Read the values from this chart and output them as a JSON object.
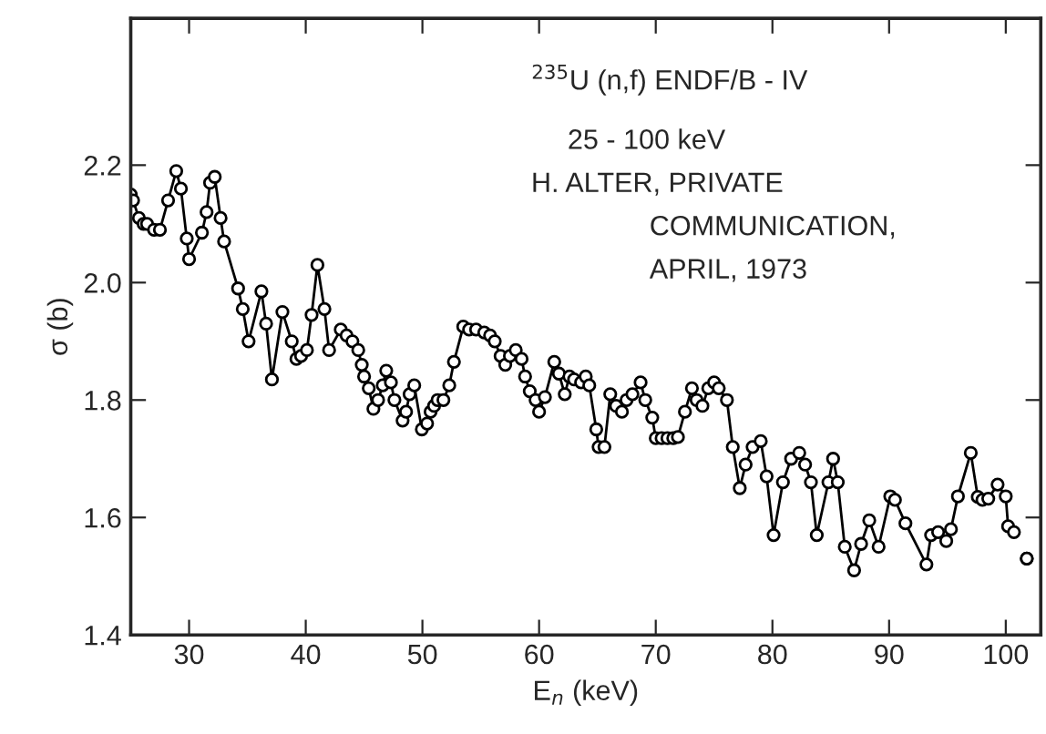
{
  "chart_data": {
    "type": "line",
    "xlabel": "E$_{n}$ (keV)",
    "ylabel": "σ (b)",
    "annotations": [
      "$^{235}$U (n,f) ENDF/B - IV",
      "25 - 100 keV",
      "H. ALTER, PRIVATE",
      "COMMUNICATION,",
      "APRIL, 1973"
    ],
    "xlim": [
      25,
      103
    ],
    "ylim": [
      1.4,
      2.45
    ],
    "xticks": [
      30,
      40,
      50,
      60,
      70,
      80,
      90,
      100
    ],
    "yticks": [
      {
        "value": 1.4,
        "label": "1.4"
      },
      {
        "value": 1.6,
        "label": "1.6"
      },
      {
        "value": 1.8,
        "label": "1.8"
      },
      {
        "value": 2.0,
        "label": "2.0"
      },
      {
        "value": 2.2,
        "label": "2.2"
      }
    ],
    "marker": "circle",
    "line_style": "solid",
    "grid": false,
    "legend": false,
    "series": [
      {
        "color": "#000000",
        "x": [
          25.0,
          25.2,
          25.7,
          26.1,
          26.4,
          27.0,
          27.5,
          28.2,
          28.9,
          29.3,
          29.8,
          30.0,
          31.1,
          31.5,
          31.8,
          32.2,
          32.7,
          33.0,
          34.2,
          34.6,
          35.1,
          36.2,
          36.6,
          37.1,
          38.0,
          38.8,
          39.2,
          39.6,
          40.1,
          40.5,
          41.0,
          41.6,
          42.0,
          43.0,
          43.5,
          44.0,
          44.5,
          44.8,
          45.0,
          45.4,
          45.8,
          46.2,
          46.6,
          46.9,
          47.3,
          47.6,
          48.3,
          48.6,
          48.9,
          49.3,
          49.95,
          50.4,
          50.7,
          51.0,
          51.3,
          51.8,
          52.3,
          52.7,
          53.5,
          54.0,
          54.6,
          55.3,
          55.8,
          56.2,
          56.7,
          57.1,
          57.5,
          58.0,
          58.5,
          58.8,
          59.2,
          59.7,
          60.0,
          60.5,
          61.3,
          61.7,
          62.2,
          62.6,
          63.0,
          63.6,
          64.0,
          64.3,
          64.9,
          65.1,
          65.6,
          66.1,
          66.6,
          67.1,
          67.5,
          68.0,
          68.7,
          69.1,
          69.7,
          70.0,
          70.5,
          71.0,
          71.5,
          71.9,
          72.5,
          73.1,
          73.5,
          74.0,
          74.5,
          75.0,
          75.4,
          76.1,
          76.6,
          77.2,
          77.7,
          78.3,
          79.0,
          79.5,
          80.1,
          80.9,
          81.6,
          82.3,
          82.8,
          83.3,
          83.8,
          84.8,
          85.2,
          85.6,
          86.2,
          87.0,
          87.6,
          88.3,
          89.1,
          90.1,
          90.5,
          91.4,
          93.2,
          93.6,
          94.2,
          94.9,
          95.3,
          95.9,
          97.0,
          97.6,
          98.0,
          98.5,
          99.3,
          100.0,
          100.2,
          100.7,
          101.2,
          101.8
        ],
        "values": [
          2.15,
          2.14,
          2.11,
          2.1,
          2.1,
          2.09,
          2.09,
          2.14,
          2.19,
          2.16,
          2.075,
          2.04,
          2.085,
          2.12,
          2.17,
          2.18,
          2.11,
          2.07,
          1.99,
          1.955,
          1.9,
          1.985,
          1.93,
          1.835,
          1.95,
          1.9,
          1.87,
          1.875,
          1.885,
          1.945,
          2.03,
          1.955,
          1.885,
          1.92,
          1.91,
          1.9,
          1.885,
          1.86,
          1.84,
          1.82,
          1.785,
          1.8,
          1.825,
          1.85,
          1.83,
          1.8,
          1.765,
          1.78,
          1.81,
          1.825,
          1.75,
          1.76,
          1.78,
          1.79,
          1.8,
          1.8,
          1.825,
          1.865,
          1.925,
          1.92,
          1.92,
          1.915,
          1.91,
          1.9,
          1.875,
          1.86,
          1.875,
          1.885,
          1.87,
          1.84,
          1.815,
          1.8,
          1.78,
          1.805,
          1.865,
          1.845,
          1.81,
          1.84,
          1.835,
          1.83,
          1.84,
          1.825,
          1.75,
          1.72,
          1.72,
          1.81,
          1.79,
          1.78,
          1.8,
          1.81,
          1.83,
          1.8,
          1.77,
          1.735,
          1.735,
          1.735,
          1.735,
          1.737,
          1.78,
          1.82,
          1.8,
          1.79,
          1.82,
          1.83,
          1.82,
          1.8,
          1.72,
          1.65,
          1.69,
          1.72,
          1.73,
          1.67,
          1.57,
          1.66,
          1.7,
          1.71,
          1.69,
          1.66,
          1.57,
          1.66,
          1.7,
          1.66,
          1.55,
          1.51,
          1.555,
          1.595,
          1.55,
          1.636,
          1.63,
          1.59,
          1.52,
          1.57,
          1.575,
          1.56,
          1.58,
          1.636,
          1.71,
          1.635,
          1.63,
          1.632,
          1.656,
          1.636,
          1.585,
          1.575,
          null,
          1.53
        ]
      }
    ]
  }
}
